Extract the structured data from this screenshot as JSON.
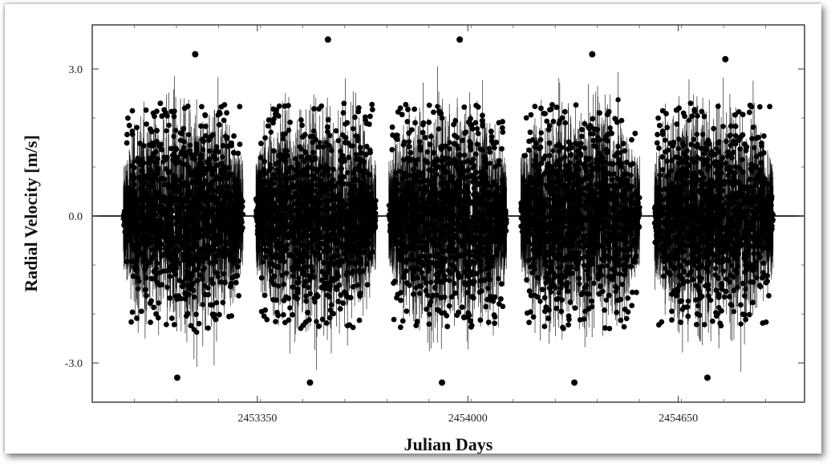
{
  "chart_data": {
    "type": "scatter",
    "title": "",
    "xlabel": "Julian Days",
    "ylabel": "Radial Velocity [m/s]",
    "xlim": [
      2452840,
      2455040
    ],
    "ylim": [
      -3.8,
      3.9
    ],
    "x_ticks": [
      {
        "value": 2453350,
        "label": "2453350"
      },
      {
        "value": 2454000,
        "label": "2454000"
      },
      {
        "value": 2454650,
        "label": "2454650"
      }
    ],
    "y_ticks": [
      {
        "value": 3.0,
        "label": "3.0"
      },
      {
        "value": 0.0,
        "label": "0.0"
      },
      {
        "value": -3.0,
        "label": "-3.0"
      }
    ],
    "zero_line": 0.0,
    "grid": false,
    "seasons": [
      {
        "x_start": 2452936,
        "x_end": 2453306,
        "rv_extent": [
          -3.3,
          3.3
        ]
      },
      {
        "x_start": 2453346,
        "x_end": 2453716,
        "rv_extent": [
          -3.4,
          3.6
        ]
      },
      {
        "x_start": 2453756,
        "x_end": 2454121,
        "rv_extent": [
          -3.4,
          3.6
        ]
      },
      {
        "x_start": 2454164,
        "x_end": 2454531,
        "rv_extent": [
          -3.4,
          3.3
        ]
      },
      {
        "x_start": 2454574,
        "x_end": 2454943,
        "rv_extent": [
          -3.3,
          3.2
        ]
      }
    ],
    "marker_color": "#000000",
    "errorbar_color": "#000000"
  }
}
